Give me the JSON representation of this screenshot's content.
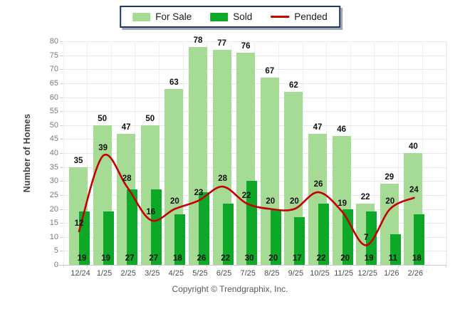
{
  "legend": {
    "items": [
      {
        "label": "For Sale",
        "marker": "swatch",
        "color": "#A6DB96"
      },
      {
        "label": "Sold",
        "marker": "swatch",
        "color": "#0EA828"
      },
      {
        "label": "Pended",
        "marker": "line",
        "color": "#C60000"
      }
    ]
  },
  "ylabel": "Number of Homes",
  "footer": {
    "copyright": "Copyright © Trendgraphix, Inc."
  },
  "colors": {
    "background": "#ffffff",
    "for_sale": "#A6DB96",
    "sold": "#0EA828",
    "pended": "#C60000",
    "hgrid": "#E7E7E7",
    "vgrid": "#EFEFEF",
    "axis": "#C9C9C9",
    "legend_border": "#1F3864"
  },
  "chart_data": {
    "type": "bar",
    "title": "",
    "xlabel": "",
    "ylabel": "Number of Homes",
    "ylim": [
      0,
      80
    ],
    "yticks": [
      0,
      5,
      10,
      15,
      20,
      25,
      30,
      35,
      40,
      45,
      50,
      55,
      60,
      65,
      70,
      75,
      80
    ],
    "grid": "horizontal+vertical",
    "legend_position": "top-center",
    "value_labels": true,
    "categories": [
      "12/24",
      "1/25",
      "2/25",
      "3/25",
      "4/25",
      "5/25",
      "6/25",
      "7/25",
      "8/25",
      "9/25",
      "10/25",
      "11/25",
      "12/25",
      "1/26",
      "2/26"
    ],
    "series": [
      {
        "name": "For Sale",
        "type": "bar",
        "color": "#A6DB96",
        "values": [
          35,
          50,
          47,
          50,
          63,
          78,
          77,
          76,
          67,
          62,
          47,
          46,
          22,
          29,
          40
        ]
      },
      {
        "name": "Sold",
        "type": "bar",
        "color": "#0EA828",
        "values": [
          19,
          19,
          27,
          27,
          18,
          26,
          22,
          30,
          20,
          17,
          22,
          20,
          19,
          11,
          18
        ]
      },
      {
        "name": "Pended",
        "type": "line",
        "color": "#C60000",
        "values": [
          12,
          39,
          28,
          16,
          20,
          23,
          28,
          22,
          20,
          20,
          26,
          19,
          7,
          20,
          24
        ]
      }
    ]
  }
}
